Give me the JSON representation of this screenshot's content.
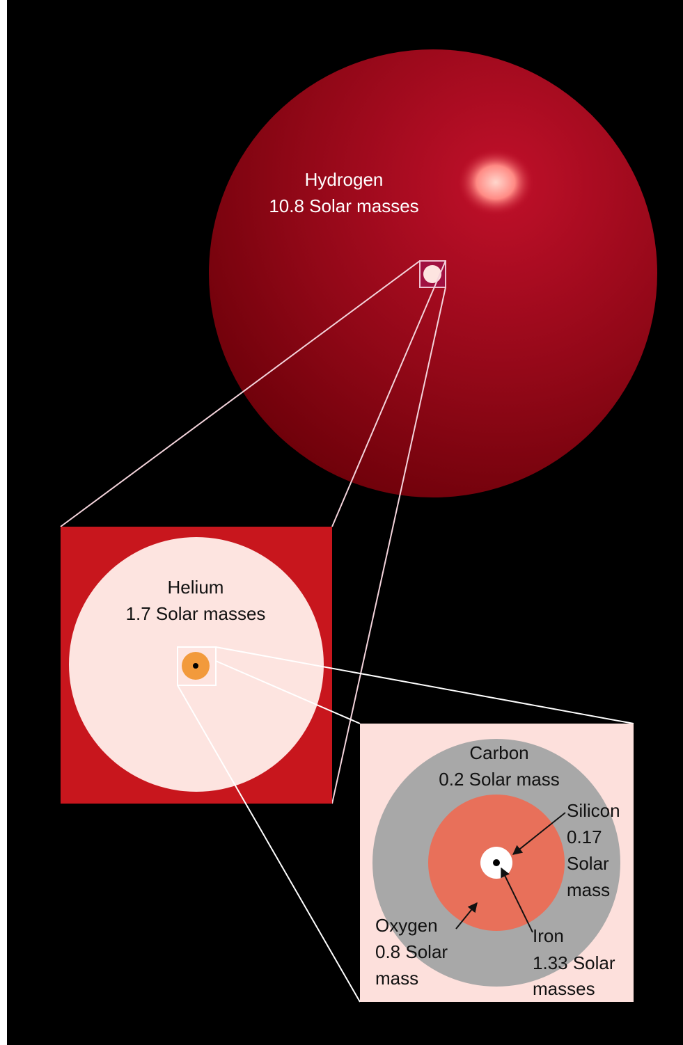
{
  "nodes": [
    {
      "lines": [
        "Hydrogen",
        "10.8 Solar masses"
      ]
    },
    {
      "lines": [
        "Helium",
        "1.7 Solar masses"
      ]
    },
    {
      "lines": [
        "Carbon",
        "0.2 Solar mass"
      ]
    },
    {
      "lines": [
        "Silicon",
        "0.17",
        "Solar",
        "mass"
      ]
    },
    {
      "lines": [
        "Oxygen",
        "0.8 Solar",
        "mass"
      ]
    },
    {
      "lines": [
        "Iron",
        "1.33 Solar",
        "masses"
      ]
    }
  ]
}
